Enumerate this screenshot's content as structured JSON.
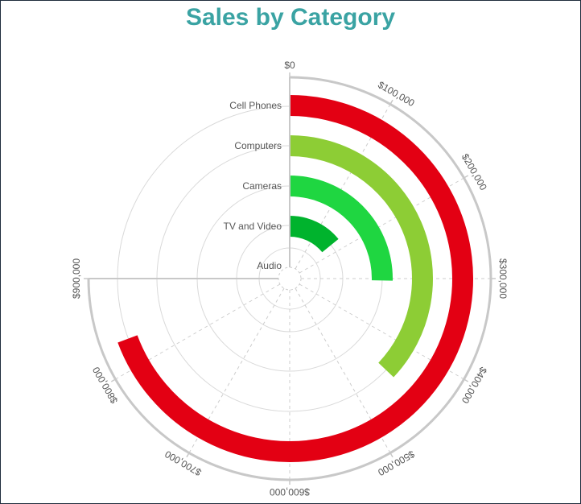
{
  "chart_data": {
    "type": "radial-bar",
    "title": "Sales by Category",
    "categories": [
      "Cell Phones",
      "Computers",
      "Cameras",
      "TV and Video",
      "Audio"
    ],
    "values": [
      832000,
      445000,
      304000,
      170000,
      8000
    ],
    "colors": [
      "#e30013",
      "#8dcd35",
      "#1fd641",
      "#00b32d",
      "#e86a2c"
    ],
    "axis": {
      "min": 0,
      "max": 900000,
      "ticks": [
        "$0",
        "$100,000",
        "$200,000",
        "$300,000",
        "$400,000",
        "$500,000",
        "$600,000",
        "$700,000",
        "$800,000",
        "$900,000"
      ],
      "start_angle": "top",
      "sweep_degrees": 270,
      "direction": "clockwise"
    },
    "grid": true,
    "legend": "none"
  }
}
